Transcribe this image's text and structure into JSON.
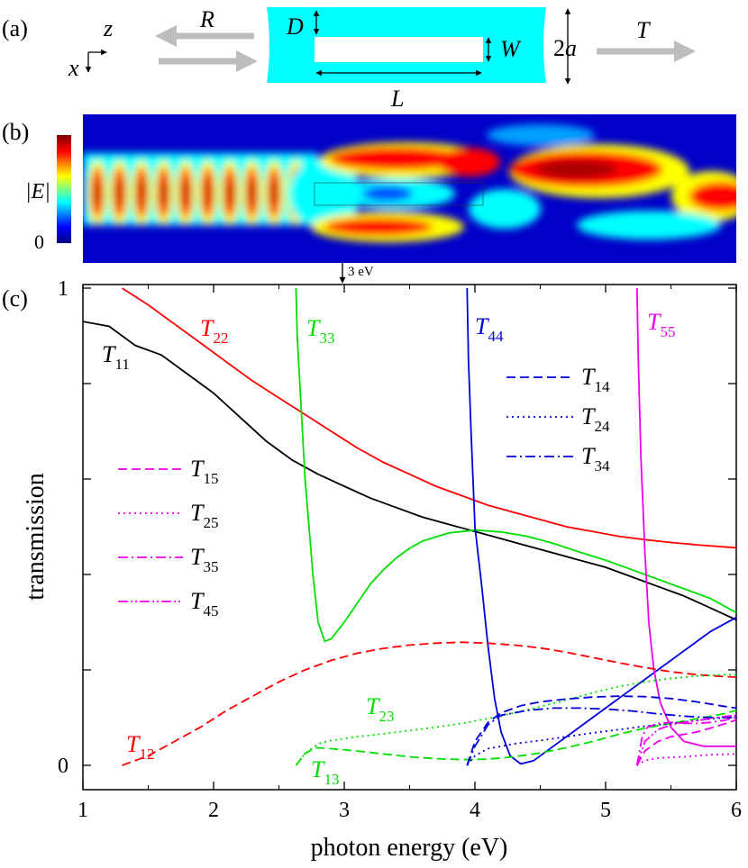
{
  "panel_a": {
    "label": "(a)",
    "axis_z": "z",
    "axis_x": "x",
    "reflection": "R",
    "transmission": "T",
    "gap_label": "D",
    "hole_width_label": "W",
    "length_label": "L",
    "diameter_label": "2a",
    "diameter_label_num": "2",
    "diameter_label_var": "a"
  },
  "panel_b": {
    "label": "(b)",
    "colorbar_label": "|E|",
    "colorbar_min": "0",
    "marker_label": "3 eV",
    "marker_energy_ev": 3,
    "colormap": [
      "#000080",
      "#0000ff",
      "#00ffff",
      "#ffff00",
      "#ff0000",
      "#800000"
    ]
  },
  "panel_c_label": "(c)",
  "chart_data": {
    "type": "line",
    "xlabel": "photon energy (eV)",
    "ylabel": "transmission",
    "xlim": [
      1,
      6
    ],
    "ylim": [
      -0.05,
      1
    ],
    "xticks": [
      1,
      2,
      3,
      4,
      5,
      6
    ],
    "yticks": [
      0,
      1
    ],
    "series": [
      {
        "name": "T11",
        "color": "#000000",
        "style": "solid",
        "points": [
          [
            1,
            0.93
          ],
          [
            1.2,
            0.92
          ],
          [
            1.4,
            0.88
          ],
          [
            1.6,
            0.86
          ],
          [
            1.8,
            0.82
          ],
          [
            2,
            0.78
          ],
          [
            2.2,
            0.73
          ],
          [
            2.4,
            0.68
          ],
          [
            2.6,
            0.64
          ],
          [
            2.8,
            0.61
          ],
          [
            3,
            0.585
          ],
          [
            3.2,
            0.56
          ],
          [
            3.4,
            0.54
          ],
          [
            3.6,
            0.52
          ],
          [
            3.8,
            0.505
          ],
          [
            4,
            0.49
          ],
          [
            4.2,
            0.475
          ],
          [
            4.4,
            0.46
          ],
          [
            4.6,
            0.445
          ],
          [
            4.8,
            0.43
          ],
          [
            5,
            0.415
          ],
          [
            5.2,
            0.395
          ],
          [
            5.4,
            0.375
          ],
          [
            5.6,
            0.355
          ],
          [
            5.8,
            0.33
          ],
          [
            6,
            0.305
          ]
        ]
      },
      {
        "name": "T22",
        "color": "#ff0000",
        "style": "solid",
        "points": [
          [
            1.3,
            1.0
          ],
          [
            1.5,
            0.965
          ],
          [
            1.7,
            0.925
          ],
          [
            1.9,
            0.885
          ],
          [
            2.1,
            0.845
          ],
          [
            2.3,
            0.805
          ],
          [
            2.5,
            0.77
          ],
          [
            2.7,
            0.735
          ],
          [
            2.9,
            0.7
          ],
          [
            3.1,
            0.665
          ],
          [
            3.3,
            0.635
          ],
          [
            3.5,
            0.61
          ],
          [
            3.7,
            0.585
          ],
          [
            3.9,
            0.565
          ],
          [
            4.1,
            0.545
          ],
          [
            4.3,
            0.53
          ],
          [
            4.5,
            0.515
          ],
          [
            4.7,
            0.5
          ],
          [
            4.9,
            0.49
          ],
          [
            5.1,
            0.48
          ],
          [
            5.3,
            0.473
          ],
          [
            5.5,
            0.467
          ],
          [
            5.7,
            0.462
          ],
          [
            5.9,
            0.458
          ],
          [
            6,
            0.456
          ]
        ]
      },
      {
        "name": "T33",
        "color": "#00e000",
        "style": "solid",
        "points": [
          [
            2.63,
            1.0
          ],
          [
            2.64,
            0.9
          ],
          [
            2.66,
            0.8
          ],
          [
            2.68,
            0.7
          ],
          [
            2.7,
            0.6
          ],
          [
            2.73,
            0.5
          ],
          [
            2.76,
            0.4
          ],
          [
            2.8,
            0.3
          ],
          [
            2.85,
            0.26
          ],
          [
            2.9,
            0.265
          ],
          [
            3,
            0.3
          ],
          [
            3.1,
            0.34
          ],
          [
            3.2,
            0.38
          ],
          [
            3.3,
            0.41
          ],
          [
            3.4,
            0.435
          ],
          [
            3.5,
            0.455
          ],
          [
            3.6,
            0.47
          ],
          [
            3.8,
            0.487
          ],
          [
            4,
            0.493
          ],
          [
            4.2,
            0.489
          ],
          [
            4.4,
            0.48
          ],
          [
            4.6,
            0.465
          ],
          [
            4.8,
            0.447
          ],
          [
            5,
            0.43
          ],
          [
            5.2,
            0.41
          ],
          [
            5.4,
            0.39
          ],
          [
            5.6,
            0.37
          ],
          [
            5.8,
            0.35
          ],
          [
            6,
            0.32
          ]
        ]
      },
      {
        "name": "T44",
        "color": "#0000dd",
        "style": "solid",
        "points": [
          [
            3.94,
            1.0
          ],
          [
            3.95,
            0.85
          ],
          [
            3.97,
            0.7
          ],
          [
            4,
            0.5
          ],
          [
            4.05,
            0.38
          ],
          [
            4.1,
            0.25
          ],
          [
            4.15,
            0.14
          ],
          [
            4.2,
            0.07
          ],
          [
            4.27,
            0.02
          ],
          [
            4.35,
            0.003
          ],
          [
            4.45,
            0.01
          ],
          [
            4.6,
            0.04
          ],
          [
            4.8,
            0.08
          ],
          [
            5,
            0.12
          ],
          [
            5.2,
            0.16
          ],
          [
            5.4,
            0.2
          ],
          [
            5.6,
            0.24
          ],
          [
            5.8,
            0.28
          ],
          [
            6,
            0.31
          ]
        ]
      },
      {
        "name": "T55",
        "color": "#ee00ee",
        "style": "solid",
        "points": [
          [
            5.24,
            1.0
          ],
          [
            5.25,
            0.85
          ],
          [
            5.27,
            0.65
          ],
          [
            5.3,
            0.45
          ],
          [
            5.33,
            0.3
          ],
          [
            5.37,
            0.2
          ],
          [
            5.42,
            0.13
          ],
          [
            5.5,
            0.08
          ],
          [
            5.6,
            0.05
          ],
          [
            5.75,
            0.04
          ],
          [
            5.9,
            0.04
          ],
          [
            6,
            0.04
          ]
        ]
      },
      {
        "name": "T12",
        "color": "#ff0000",
        "style": "dashed",
        "points": [
          [
            1.3,
            0.0
          ],
          [
            1.5,
            0.02
          ],
          [
            1.7,
            0.05
          ],
          [
            1.9,
            0.08
          ],
          [
            2.1,
            0.115
          ],
          [
            2.3,
            0.145
          ],
          [
            2.5,
            0.175
          ],
          [
            2.7,
            0.2
          ],
          [
            2.9,
            0.22
          ],
          [
            3.1,
            0.235
          ],
          [
            3.3,
            0.245
          ],
          [
            3.5,
            0.252
          ],
          [
            3.7,
            0.256
          ],
          [
            3.9,
            0.258
          ],
          [
            4.1,
            0.256
          ],
          [
            4.3,
            0.252
          ],
          [
            4.5,
            0.246
          ],
          [
            4.7,
            0.237
          ],
          [
            4.9,
            0.226
          ],
          [
            5.1,
            0.215
          ],
          [
            5.3,
            0.205
          ],
          [
            5.5,
            0.196
          ],
          [
            5.7,
            0.19
          ],
          [
            5.9,
            0.186
          ],
          [
            6,
            0.185
          ]
        ]
      },
      {
        "name": "T13",
        "color": "#00e000",
        "style": "dashed",
        "points": [
          [
            2.63,
            0.0
          ],
          [
            2.7,
            0.025
          ],
          [
            2.78,
            0.037
          ],
          [
            2.9,
            0.035
          ],
          [
            3.1,
            0.03
          ],
          [
            3.3,
            0.024
          ],
          [
            3.5,
            0.018
          ],
          [
            3.7,
            0.014
          ],
          [
            3.9,
            0.012
          ],
          [
            4.1,
            0.013
          ],
          [
            4.3,
            0.018
          ],
          [
            4.5,
            0.026
          ],
          [
            4.7,
            0.037
          ],
          [
            4.9,
            0.05
          ],
          [
            5.1,
            0.065
          ],
          [
            5.3,
            0.078
          ],
          [
            5.5,
            0.088
          ],
          [
            5.7,
            0.098
          ],
          [
            5.9,
            0.108
          ],
          [
            6,
            0.115
          ]
        ]
      },
      {
        "name": "T23",
        "color": "#00e000",
        "style": "dotted",
        "points": [
          [
            2.63,
            0.0
          ],
          [
            2.7,
            0.025
          ],
          [
            2.8,
            0.045
          ],
          [
            2.9,
            0.052
          ],
          [
            3.1,
            0.06
          ],
          [
            3.3,
            0.066
          ],
          [
            3.5,
            0.073
          ],
          [
            3.7,
            0.08
          ],
          [
            3.9,
            0.088
          ],
          [
            4.1,
            0.098
          ],
          [
            4.3,
            0.11
          ],
          [
            4.5,
            0.123
          ],
          [
            4.7,
            0.137
          ],
          [
            4.9,
            0.152
          ],
          [
            5.1,
            0.165
          ],
          [
            5.3,
            0.175
          ],
          [
            5.5,
            0.182
          ],
          [
            5.7,
            0.187
          ],
          [
            5.9,
            0.19
          ],
          [
            6,
            0.19
          ]
        ]
      },
      {
        "name": "T14",
        "color": "#0000dd",
        "style": "dashed",
        "points": [
          [
            3.94,
            0.0
          ],
          [
            4,
            0.05
          ],
          [
            4.1,
            0.09
          ],
          [
            4.2,
            0.11
          ],
          [
            4.35,
            0.125
          ],
          [
            4.5,
            0.133
          ],
          [
            4.7,
            0.139
          ],
          [
            4.9,
            0.143
          ],
          [
            5.1,
            0.145
          ],
          [
            5.3,
            0.144
          ],
          [
            5.5,
            0.14
          ],
          [
            5.7,
            0.133
          ],
          [
            5.9,
            0.124
          ],
          [
            6,
            0.12
          ]
        ]
      },
      {
        "name": "T24",
        "color": "#0000dd",
        "style": "dotted",
        "points": [
          [
            3.94,
            0.0
          ],
          [
            4,
            0.02
          ],
          [
            4.1,
            0.035
          ],
          [
            4.3,
            0.045
          ],
          [
            4.5,
            0.052
          ],
          [
            4.7,
            0.06
          ],
          [
            4.9,
            0.068
          ],
          [
            5.1,
            0.075
          ],
          [
            5.3,
            0.082
          ],
          [
            5.5,
            0.088
          ],
          [
            5.7,
            0.094
          ],
          [
            5.9,
            0.1
          ],
          [
            6,
            0.103
          ]
        ]
      },
      {
        "name": "T34",
        "color": "#0000dd",
        "style": "dashdot",
        "points": [
          [
            3.94,
            0.0
          ],
          [
            4,
            0.04
          ],
          [
            4.1,
            0.085
          ],
          [
            4.2,
            0.105
          ],
          [
            4.4,
            0.115
          ],
          [
            4.6,
            0.12
          ],
          [
            4.8,
            0.12
          ],
          [
            5,
            0.118
          ],
          [
            5.2,
            0.114
          ],
          [
            5.4,
            0.108
          ],
          [
            5.6,
            0.103
          ],
          [
            5.8,
            0.1
          ],
          [
            6,
            0.1
          ]
        ]
      },
      {
        "name": "T15",
        "color": "#ee00ee",
        "style": "dashed",
        "points": [
          [
            5.24,
            0.0
          ],
          [
            5.3,
            0.03
          ],
          [
            5.4,
            0.05
          ],
          [
            5.5,
            0.06
          ],
          [
            5.6,
            0.065
          ],
          [
            5.7,
            0.07
          ],
          [
            5.8,
            0.078
          ],
          [
            5.9,
            0.086
          ],
          [
            6,
            0.095
          ]
        ]
      },
      {
        "name": "T25",
        "color": "#ee00ee",
        "style": "dotted",
        "points": [
          [
            5.24,
            0.0
          ],
          [
            5.3,
            0.01
          ],
          [
            5.4,
            0.015
          ],
          [
            5.5,
            0.017
          ],
          [
            5.6,
            0.018
          ],
          [
            5.7,
            0.02
          ],
          [
            5.8,
            0.022
          ],
          [
            5.9,
            0.023
          ],
          [
            6,
            0.024
          ]
        ]
      },
      {
        "name": "T35",
        "color": "#ee00ee",
        "style": "dashdot",
        "points": [
          [
            5.24,
            0.0
          ],
          [
            5.28,
            0.06
          ],
          [
            5.32,
            0.08
          ],
          [
            5.4,
            0.088
          ],
          [
            5.5,
            0.09
          ],
          [
            5.6,
            0.088
          ],
          [
            5.7,
            0.088
          ],
          [
            5.8,
            0.09
          ],
          [
            5.9,
            0.094
          ],
          [
            6,
            0.1
          ]
        ]
      },
      {
        "name": "T45",
        "color": "#ee00ee",
        "style": "dashdotdot",
        "points": [
          [
            5.24,
            0.0
          ],
          [
            5.3,
            0.05
          ],
          [
            5.4,
            0.075
          ],
          [
            5.5,
            0.085
          ],
          [
            5.6,
            0.09
          ],
          [
            5.7,
            0.094
          ],
          [
            5.8,
            0.098
          ],
          [
            5.9,
            0.102
          ],
          [
            6,
            0.105
          ]
        ]
      }
    ],
    "series_labels": [
      {
        "base": "T",
        "sub": "11",
        "color": "#000000"
      },
      {
        "base": "T",
        "sub": "22",
        "color": "#ff0000"
      },
      {
        "base": "T",
        "sub": "33",
        "color": "#00e000"
      },
      {
        "base": "T",
        "sub": "44",
        "color": "#0000dd"
      },
      {
        "base": "T",
        "sub": "55",
        "color": "#ee00ee"
      },
      {
        "base": "T",
        "sub": "12",
        "color": "#ff0000"
      },
      {
        "base": "T",
        "sub": "13",
        "color": "#00e000"
      },
      {
        "base": "T",
        "sub": "23",
        "color": "#00e000"
      }
    ],
    "legend_right": [
      {
        "base": "T",
        "sub": "14",
        "color": "#0000dd",
        "style": "dashed"
      },
      {
        "base": "T",
        "sub": "24",
        "color": "#0000dd",
        "style": "dotted"
      },
      {
        "base": "T",
        "sub": "34",
        "color": "#0000dd",
        "style": "dashdot"
      }
    ],
    "legend_left": [
      {
        "base": "T",
        "sub": "15",
        "color": "#ee00ee",
        "style": "dashed"
      },
      {
        "base": "T",
        "sub": "25",
        "color": "#ee00ee",
        "style": "dotted"
      },
      {
        "base": "T",
        "sub": "35",
        "color": "#ee00ee",
        "style": "dashdot"
      },
      {
        "base": "T",
        "sub": "45",
        "color": "#ee00ee",
        "style": "dashdotdot"
      }
    ]
  }
}
